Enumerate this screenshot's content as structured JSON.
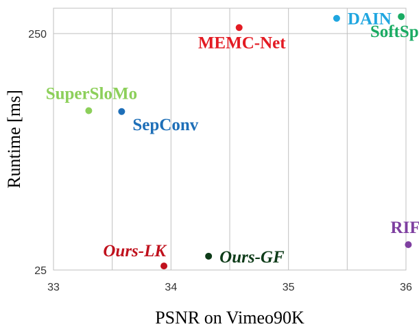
{
  "chart_data": {
    "type": "scatter",
    "title": "",
    "xlabel": "PSNR on Vimeo90K",
    "ylabel": "Runtime [ms]",
    "xlim": [
      33,
      36
    ],
    "xticks": [
      33,
      34,
      35,
      36
    ],
    "yscale": "log",
    "ylim": [
      25,
      320
    ],
    "yticks": [
      25,
      250
    ],
    "grid": "vertical lines at x ticks, horizontal line at 250",
    "legend": "none (points labeled directly)",
    "points": [
      {
        "label": "DAIN",
        "x": 35.41,
        "y": 290,
        "color": "#1fa6e0",
        "italic": false,
        "label_pos": "right"
      },
      {
        "label": "SoftSplat",
        "x": 35.96,
        "y": 295,
        "color": "#1aab63",
        "italic": false,
        "label_pos": "below"
      },
      {
        "label": "MEMC-Net",
        "x": 34.58,
        "y": 265,
        "color": "#e31b23",
        "italic": false,
        "label_pos": "below"
      },
      {
        "label": "SuperSloMo",
        "x": 33.3,
        "y": 118,
        "color": "#8ccf5a",
        "italic": false,
        "label_pos": "above"
      },
      {
        "label": "SepConv",
        "x": 33.58,
        "y": 117,
        "color": "#1e6fb8",
        "italic": false,
        "label_pos": "below-right"
      },
      {
        "label": "RIFE",
        "x": 36.02,
        "y": 32,
        "color": "#7e3fa0",
        "italic": false,
        "label_pos": "above"
      },
      {
        "label": "Ours-LK",
        "x": 33.94,
        "y": 26,
        "color": "#c0111d",
        "italic": true,
        "label_pos": "above-left"
      },
      {
        "label": "Ours-GF",
        "x": 34.32,
        "y": 28.6,
        "color": "#0d3b18",
        "italic": true,
        "label_pos": "right"
      }
    ]
  }
}
